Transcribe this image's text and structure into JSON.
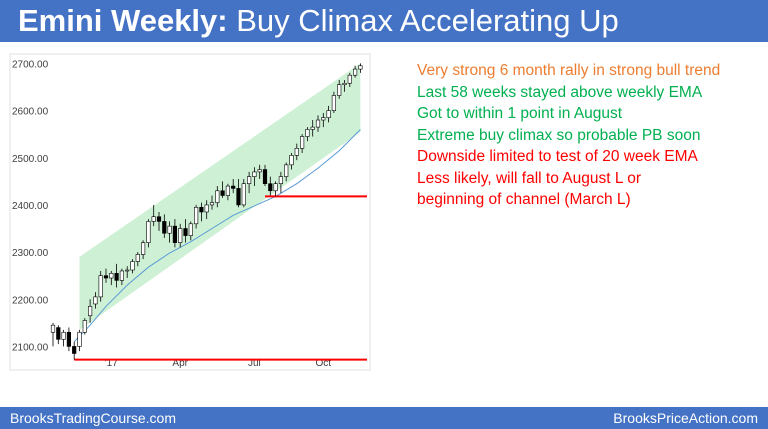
{
  "title": {
    "bold": "Emini Weekly:",
    "rest": " Buy Climax Accelerating Up"
  },
  "colors": {
    "header": "#4472c4",
    "orange": "#ed7d31",
    "green": "#00b050",
    "red": "#ff0000",
    "channel": "#c6efce",
    "ema": "#5b9bd5"
  },
  "notes": [
    {
      "text": "Very strong 6 month rally in strong bull trend",
      "color": "#ed7d31"
    },
    {
      "text": "Last 58 weeks stayed above weekly EMA",
      "color": "#00b050"
    },
    {
      "text": "Got to within 1 point in August",
      "color": "#00b050"
    },
    {
      "text": "Extreme buy climax so probable PB soon",
      "color": "#00b050"
    },
    {
      "text": "Downside limited to test of 20 week EMA",
      "color": "#ff0000"
    },
    {
      "text": "Less likely, will fall to August L or",
      "color": "#ff0000"
    },
    {
      "text": "beginning of channel (March L)",
      "color": "#ff0000"
    }
  ],
  "footer": {
    "left": "BrooksTradingCourse.com",
    "right": "BrooksPriceAction.com"
  },
  "chart_data": {
    "type": "candlestick",
    "ylim": [
      2050,
      2720
    ],
    "yticks": [
      2100,
      2200,
      2300,
      2400,
      2500,
      2600,
      2700
    ],
    "ytick_labels": [
      "2100.00",
      "2200.00",
      "2300.00",
      "2400.00",
      "2500.00",
      "2600.00",
      "2700.00"
    ],
    "x_labels": [
      {
        "label": "'17",
        "index": 11
      },
      {
        "label": "Apr",
        "index": 24
      },
      {
        "label": "Jul",
        "index": 38
      },
      {
        "label": "Oct",
        "index": 51
      }
    ],
    "candles": [
      [
        2130,
        2150,
        2100,
        2145
      ],
      [
        2140,
        2145,
        2105,
        2115
      ],
      [
        2115,
        2135,
        2100,
        2130
      ],
      [
        2130,
        2140,
        2090,
        2100
      ],
      [
        2100,
        2110,
        2072,
        2085
      ],
      [
        2100,
        2135,
        2090,
        2130
      ],
      [
        2130,
        2160,
        2125,
        2155
      ],
      [
        2165,
        2200,
        2150,
        2185
      ],
      [
        2190,
        2215,
        2180,
        2205
      ],
      [
        2205,
        2260,
        2195,
        2250
      ],
      [
        2250,
        2265,
        2235,
        2245
      ],
      [
        2245,
        2260,
        2230,
        2255
      ],
      [
        2255,
        2275,
        2225,
        2240
      ],
      [
        2240,
        2265,
        2230,
        2260
      ],
      [
        2260,
        2270,
        2245,
        2262
      ],
      [
        2262,
        2285,
        2255,
        2280
      ],
      [
        2280,
        2300,
        2270,
        2295
      ],
      [
        2295,
        2325,
        2285,
        2320
      ],
      [
        2320,
        2370,
        2310,
        2365
      ],
      [
        2365,
        2400,
        2355,
        2375
      ],
      [
        2375,
        2385,
        2345,
        2365
      ],
      [
        2365,
        2380,
        2330,
        2340
      ],
      [
        2340,
        2365,
        2320,
        2355
      ],
      [
        2355,
        2370,
        2310,
        2320
      ],
      [
        2320,
        2360,
        2310,
        2350
      ],
      [
        2350,
        2370,
        2320,
        2335
      ],
      [
        2335,
        2365,
        2325,
        2360
      ],
      [
        2360,
        2400,
        2350,
        2395
      ],
      [
        2395,
        2405,
        2365,
        2385
      ],
      [
        2385,
        2410,
        2370,
        2400
      ],
      [
        2400,
        2420,
        2390,
        2405
      ],
      [
        2405,
        2440,
        2395,
        2430
      ],
      [
        2430,
        2450,
        2415,
        2420
      ],
      [
        2420,
        2445,
        2410,
        2440
      ],
      [
        2440,
        2455,
        2425,
        2435
      ],
      [
        2435,
        2455,
        2395,
        2400
      ],
      [
        2400,
        2455,
        2395,
        2445
      ],
      [
        2445,
        2470,
        2425,
        2460
      ],
      [
        2460,
        2480,
        2440,
        2470
      ],
      [
        2470,
        2485,
        2455,
        2475
      ],
      [
        2475,
        2485,
        2440,
        2445
      ],
      [
        2445,
        2460,
        2420,
        2430
      ],
      [
        2430,
        2450,
        2418,
        2445
      ],
      [
        2445,
        2470,
        2425,
        2460
      ],
      [
        2460,
        2490,
        2450,
        2485
      ],
      [
        2485,
        2510,
        2475,
        2505
      ],
      [
        2505,
        2530,
        2495,
        2520
      ],
      [
        2520,
        2550,
        2510,
        2545
      ],
      [
        2545,
        2565,
        2535,
        2560
      ],
      [
        2560,
        2580,
        2545,
        2565
      ],
      [
        2565,
        2590,
        2555,
        2580
      ],
      [
        2580,
        2595,
        2565,
        2585
      ],
      [
        2585,
        2610,
        2575,
        2600
      ],
      [
        2600,
        2640,
        2595,
        2632
      ],
      [
        2632,
        2665,
        2625,
        2655
      ],
      [
        2655,
        2665,
        2640,
        2658
      ],
      [
        2658,
        2680,
        2650,
        2675
      ],
      [
        2675,
        2695,
        2670,
        2688
      ],
      [
        2688,
        2700,
        2680,
        2695
      ]
    ],
    "ema": [
      [
        4,
        2110
      ],
      [
        7,
        2145
      ],
      [
        10,
        2185
      ],
      [
        14,
        2230
      ],
      [
        18,
        2268
      ],
      [
        22,
        2298
      ],
      [
        26,
        2322
      ],
      [
        30,
        2350
      ],
      [
        34,
        2378
      ],
      [
        38,
        2398
      ],
      [
        42,
        2418
      ],
      [
        46,
        2445
      ],
      [
        50,
        2478
      ],
      [
        54,
        2515
      ],
      [
        58,
        2560
      ]
    ],
    "channel": {
      "top": [
        [
          5,
          2290
        ],
        [
          58,
          2700
        ]
      ],
      "bottom": [
        [
          5,
          2135
        ],
        [
          58,
          2555
        ]
      ]
    },
    "support_lines": [
      {
        "value": 2418,
        "from_index": 40,
        "to_index": 63
      },
      {
        "value": 2072,
        "from_index": 4,
        "to_index": 63
      }
    ]
  }
}
